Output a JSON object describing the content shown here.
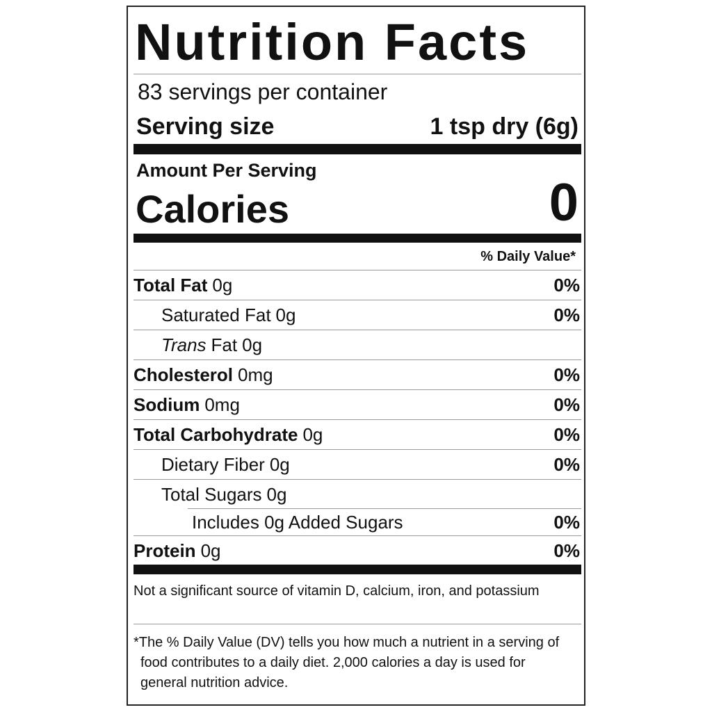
{
  "header": {
    "title": "Nutrition Facts",
    "servings": "83 servings per container",
    "serving_size_label": "Serving size",
    "serving_size": "1 tsp dry (6g)"
  },
  "calories": {
    "heading": "Amount Per Serving",
    "label": "Calories",
    "value": "0"
  },
  "daily_value_heading": "% Daily Value*",
  "nutrients": [
    {
      "label": "Total Fat",
      "amount": "0g",
      "dv": "0%"
    },
    {
      "label": "Saturated Fat",
      "amount": "0g",
      "dv": "0%"
    },
    {
      "label_italic": "Trans",
      "label": "Fat",
      "amount": "0g"
    },
    {
      "label": "Cholesterol",
      "amount": "0mg",
      "dv": "0%"
    },
    {
      "label": "Sodium",
      "amount": "0mg",
      "dv": "0%"
    },
    {
      "label": "Total Carbohydrate",
      "amount": "0g",
      "dv": "0%"
    },
    {
      "label": "Dietary Fiber",
      "amount": "0g",
      "dv": "0%"
    },
    {
      "label": "Total Sugars",
      "amount": "0g"
    },
    {
      "label": "Includes 0g Added Sugars",
      "dv": "0%"
    },
    {
      "label": "Protein",
      "amount": "0g",
      "dv": "0%"
    }
  ],
  "note": "Not a significant source of vitamin D, calcium, iron, and potassium",
  "footnote": "*The % Daily Value (DV) tells you how much a nutrient in a serving of food contributes to a daily diet. 2,000 calories a day is used for general nutrition advice."
}
